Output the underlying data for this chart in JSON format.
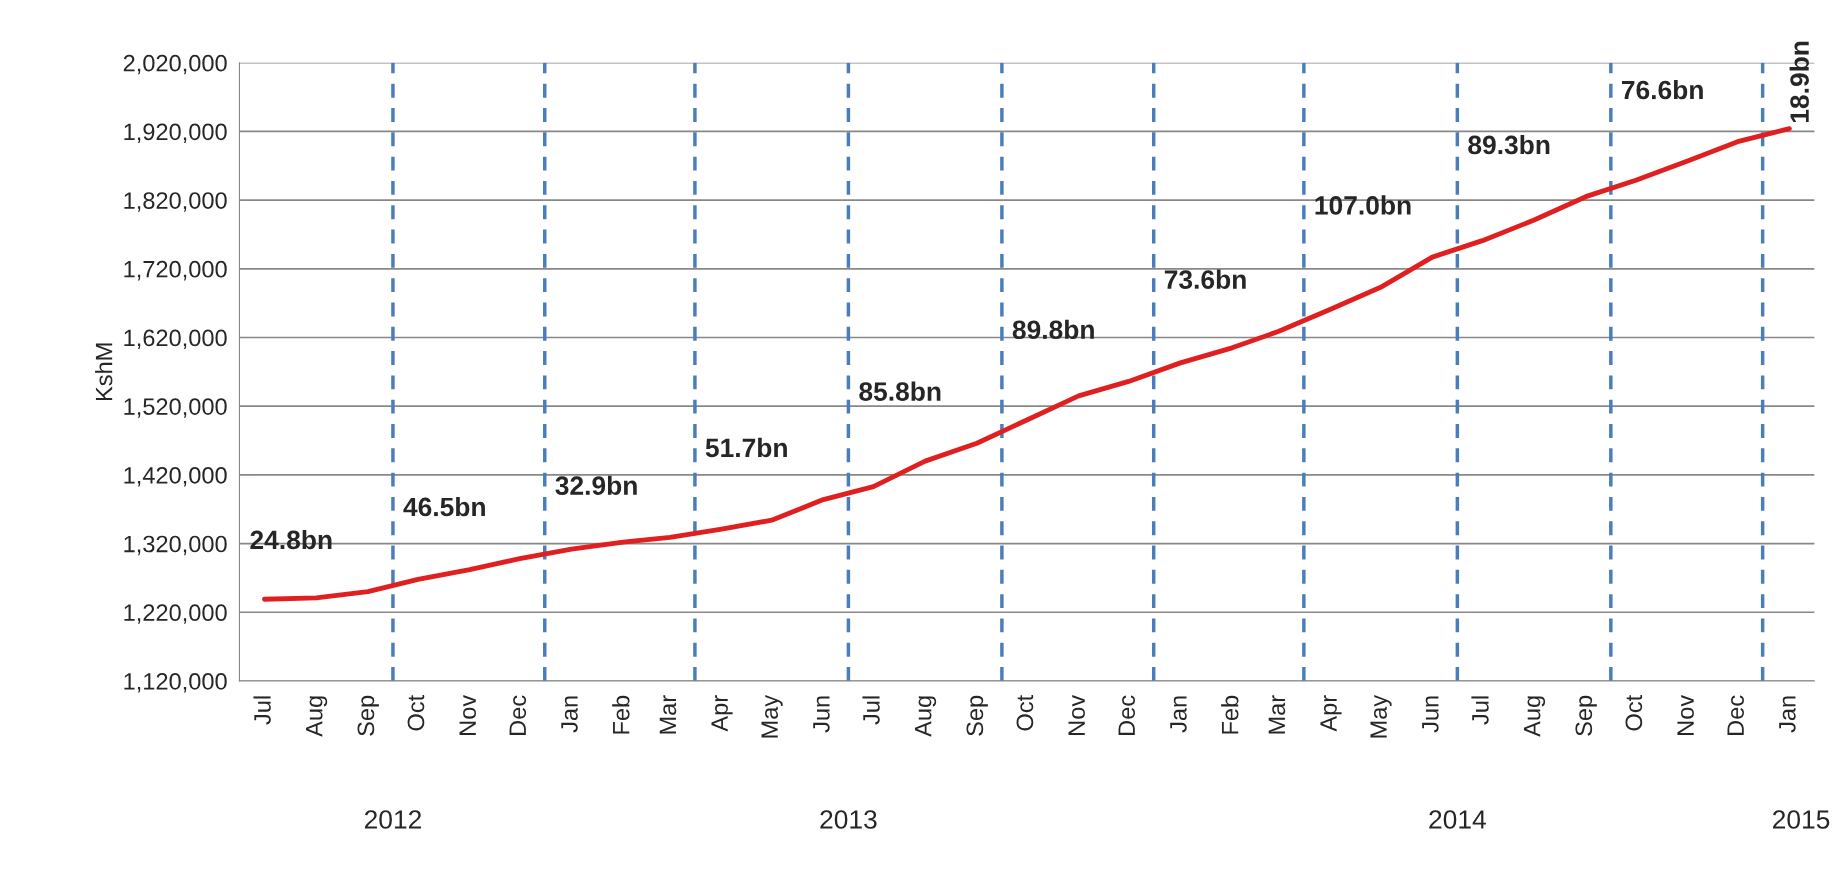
{
  "chart_data": {
    "type": "line",
    "ylabel": "KshM",
    "x": [
      "2012-07",
      "2012-08",
      "2012-09",
      "2012-10",
      "2012-11",
      "2012-12",
      "2013-01",
      "2013-02",
      "2013-03",
      "2013-04",
      "2013-05",
      "2013-06",
      "2013-07",
      "2013-08",
      "2013-09",
      "2013-10",
      "2013-11",
      "2013-12",
      "2014-01",
      "2014-02",
      "2014-03",
      "2014-04",
      "2014-05",
      "2014-06",
      "2014-07",
      "2014-08",
      "2014-09",
      "2014-10",
      "2014-11",
      "2014-12",
      "2015-01"
    ],
    "series": [
      {
        "color": "#e02020",
        "values": [
          1239000,
          1241000,
          1250000,
          1268000,
          1282000,
          1298000,
          1312000,
          1322000,
          1329000,
          1341000,
          1354000,
          1384000,
          1403000,
          1440000,
          1466000,
          1500000,
          1535000,
          1556000,
          1583000,
          1605000,
          1629000,
          1661000,
          1693000,
          1737000,
          1761000,
          1791000,
          1825000,
          1849000,
          1877000,
          1905000,
          1924000
        ]
      }
    ],
    "xlim": [
      "2012-06-16",
      "2015-01-16"
    ],
    "xticks": [
      {
        "value": "2012-07",
        "label": "Jul"
      },
      {
        "value": "2012-08",
        "label": "Aug"
      },
      {
        "value": "2012-09",
        "label": "Sep"
      },
      {
        "value": "2012-10",
        "label": "Oct"
      },
      {
        "value": "2012-11",
        "label": "Nov"
      },
      {
        "value": "2012-12",
        "label": "Dec"
      },
      {
        "value": "2013-01",
        "label": "Jan"
      },
      {
        "value": "2013-02",
        "label": "Feb"
      },
      {
        "value": "2013-03",
        "label": "Mar"
      },
      {
        "value": "2013-04",
        "label": "Apr"
      },
      {
        "value": "2013-05",
        "label": "May"
      },
      {
        "value": "2013-06",
        "label": "Jun"
      },
      {
        "value": "2013-07",
        "label": "Jul"
      },
      {
        "value": "2013-08",
        "label": "Aug"
      },
      {
        "value": "2013-09",
        "label": "Sep"
      },
      {
        "value": "2013-10",
        "label": "Oct"
      },
      {
        "value": "2013-11",
        "label": "Nov"
      },
      {
        "value": "2013-12",
        "label": "Dec"
      },
      {
        "value": "2014-01",
        "label": "Jan"
      },
      {
        "value": "2014-02",
        "label": "Feb"
      },
      {
        "value": "2014-03",
        "label": "Mar"
      },
      {
        "value": "2014-04",
        "label": "Apr"
      },
      {
        "value": "2014-05",
        "label": "May"
      },
      {
        "value": "2014-06",
        "label": "Jun"
      },
      {
        "value": "2014-07",
        "label": "Jul"
      },
      {
        "value": "2014-08",
        "label": "Aug"
      },
      {
        "value": "2014-09",
        "label": "Sep"
      },
      {
        "value": "2014-10",
        "label": "Oct"
      },
      {
        "value": "2014-11",
        "label": "Nov"
      },
      {
        "value": "2014-12",
        "label": "Dec"
      },
      {
        "value": "2015-01",
        "label": "Jan"
      }
    ],
    "ylim": [
      1120000,
      2020000
    ],
    "yticks": [
      {
        "value": 1120000,
        "label": "1,120,000"
      },
      {
        "value": 1220000,
        "label": "1,220,000"
      },
      {
        "value": 1320000,
        "label": "1,320,000"
      },
      {
        "value": 1420000,
        "label": "1,420,000"
      },
      {
        "value": 1520000,
        "label": "1,520,000"
      },
      {
        "value": 1620000,
        "label": "1,620,000"
      },
      {
        "value": 1720000,
        "label": "1,720,000"
      },
      {
        "value": 1820000,
        "label": "1,820,000"
      },
      {
        "value": 1920000,
        "label": "1,920,000"
      },
      {
        "value": 2020000,
        "label": "2,020,000"
      }
    ],
    "grid": "y",
    "marker": "none",
    "line_style": "solid",
    "x2lim": [
      "2012-06-16",
      "2015-01-16"
    ],
    "x2ticks": [
      {
        "value": "2012-09-16",
        "label": "2012"
      },
      {
        "value": "2013-06-16",
        "label": "2013"
      },
      {
        "value": "2014-06-16",
        "label": "2014"
      },
      {
        "value": "2015-01-08",
        "label": "2015"
      }
    ],
    "ref_lines": [
      {
        "axis": "x",
        "value": "2012-09-16",
        "color": "#4a7ebb",
        "line_style": "dashed"
      },
      {
        "axis": "x",
        "value": "2012-12-16",
        "color": "#4a7ebb",
        "line_style": "dashed"
      },
      {
        "axis": "x",
        "value": "2013-03-16",
        "color": "#4a7ebb",
        "line_style": "dashed"
      },
      {
        "axis": "x",
        "value": "2013-06-16",
        "color": "#4a7ebb",
        "line_style": "dashed"
      },
      {
        "axis": "x",
        "value": "2013-09-16",
        "color": "#4a7ebb",
        "line_style": "dashed"
      },
      {
        "axis": "x",
        "value": "2013-12-16",
        "color": "#4a7ebb",
        "line_style": "dashed"
      },
      {
        "axis": "x",
        "value": "2014-03-16",
        "color": "#4a7ebb",
        "line_style": "dashed"
      },
      {
        "axis": "x",
        "value": "2014-06-16",
        "color": "#4a7ebb",
        "line_style": "dashed"
      },
      {
        "axis": "x",
        "value": "2014-09-16",
        "color": "#4a7ebb",
        "line_style": "dashed"
      },
      {
        "axis": "x",
        "value": "2014-12-16",
        "color": "#4a7ebb",
        "line_style": "dashed"
      }
    ],
    "annotations": [
      "24.8bn",
      "46.5bn",
      "32.9bn",
      "51.7bn",
      "85.8bn",
      "89.8bn",
      "73.6bn",
      "107.0bn",
      "89.3bn",
      "76.6bn",
      "18.9bn"
    ]
  }
}
